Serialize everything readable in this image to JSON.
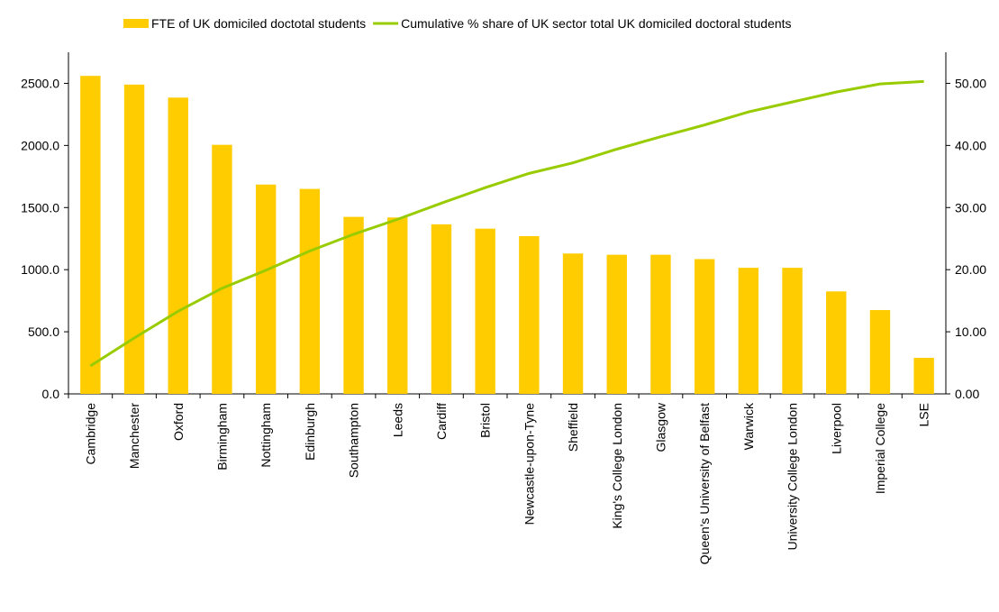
{
  "chart_data": {
    "type": "bar_line",
    "categories": [
      "Cambridge",
      "Manchester",
      "Oxford",
      "Birmingham",
      "Nottingham",
      "Edinburgh",
      "Southampton",
      "Leeds",
      "Cardiff",
      "Bristol",
      "Newcastle-upon-Tyne",
      "Sheffield",
      "King's College London",
      "Glasgow",
      "Queen's University of Belfast",
      "Warwick",
      "University College London",
      "Liverpool",
      "Imperial College",
      "LSE"
    ],
    "series": [
      {
        "name": "FTE of UK domiciled doctotal students",
        "type": "bar",
        "color": "#ffcc00",
        "values": [
          2560,
          2490,
          2385,
          2005,
          1685,
          1650,
          1425,
          1420,
          1365,
          1330,
          1270,
          1130,
          1120,
          1120,
          1085,
          1015,
          1015,
          825,
          675,
          290
        ]
      },
      {
        "name": "Cumulative % share of UK sector total UK domiciled doctoral students",
        "type": "line",
        "axis": "y2",
        "color": "#99cc00",
        "values": [
          4.5,
          9.0,
          13.3,
          17.0,
          19.9,
          23.0,
          25.7,
          28.1,
          30.7,
          33.2,
          35.5,
          37.2,
          39.4,
          41.4,
          43.3,
          45.4,
          47.0,
          48.6,
          49.9,
          50.3
        ]
      }
    ],
    "ylim": [
      0,
      2750
    ],
    "yticks": [
      {
        "value": 0,
        "label": "0.0"
      },
      {
        "value": 500,
        "label": "500.0"
      },
      {
        "value": 1000,
        "label": "1000.0"
      },
      {
        "value": 1500,
        "label": "1500.0"
      },
      {
        "value": 2000,
        "label": "2000.0"
      },
      {
        "value": 2500,
        "label": "2500.0"
      }
    ],
    "y2lim": [
      0,
      55
    ],
    "y2ticks": [
      {
        "value": 0,
        "label": "0.00"
      },
      {
        "value": 10,
        "label": "10.00"
      },
      {
        "value": 20,
        "label": "20.00"
      },
      {
        "value": 30,
        "label": "30.00"
      },
      {
        "value": 40,
        "label": "40.00"
      },
      {
        "value": 50,
        "label": "50.00"
      }
    ],
    "legend": "top"
  }
}
